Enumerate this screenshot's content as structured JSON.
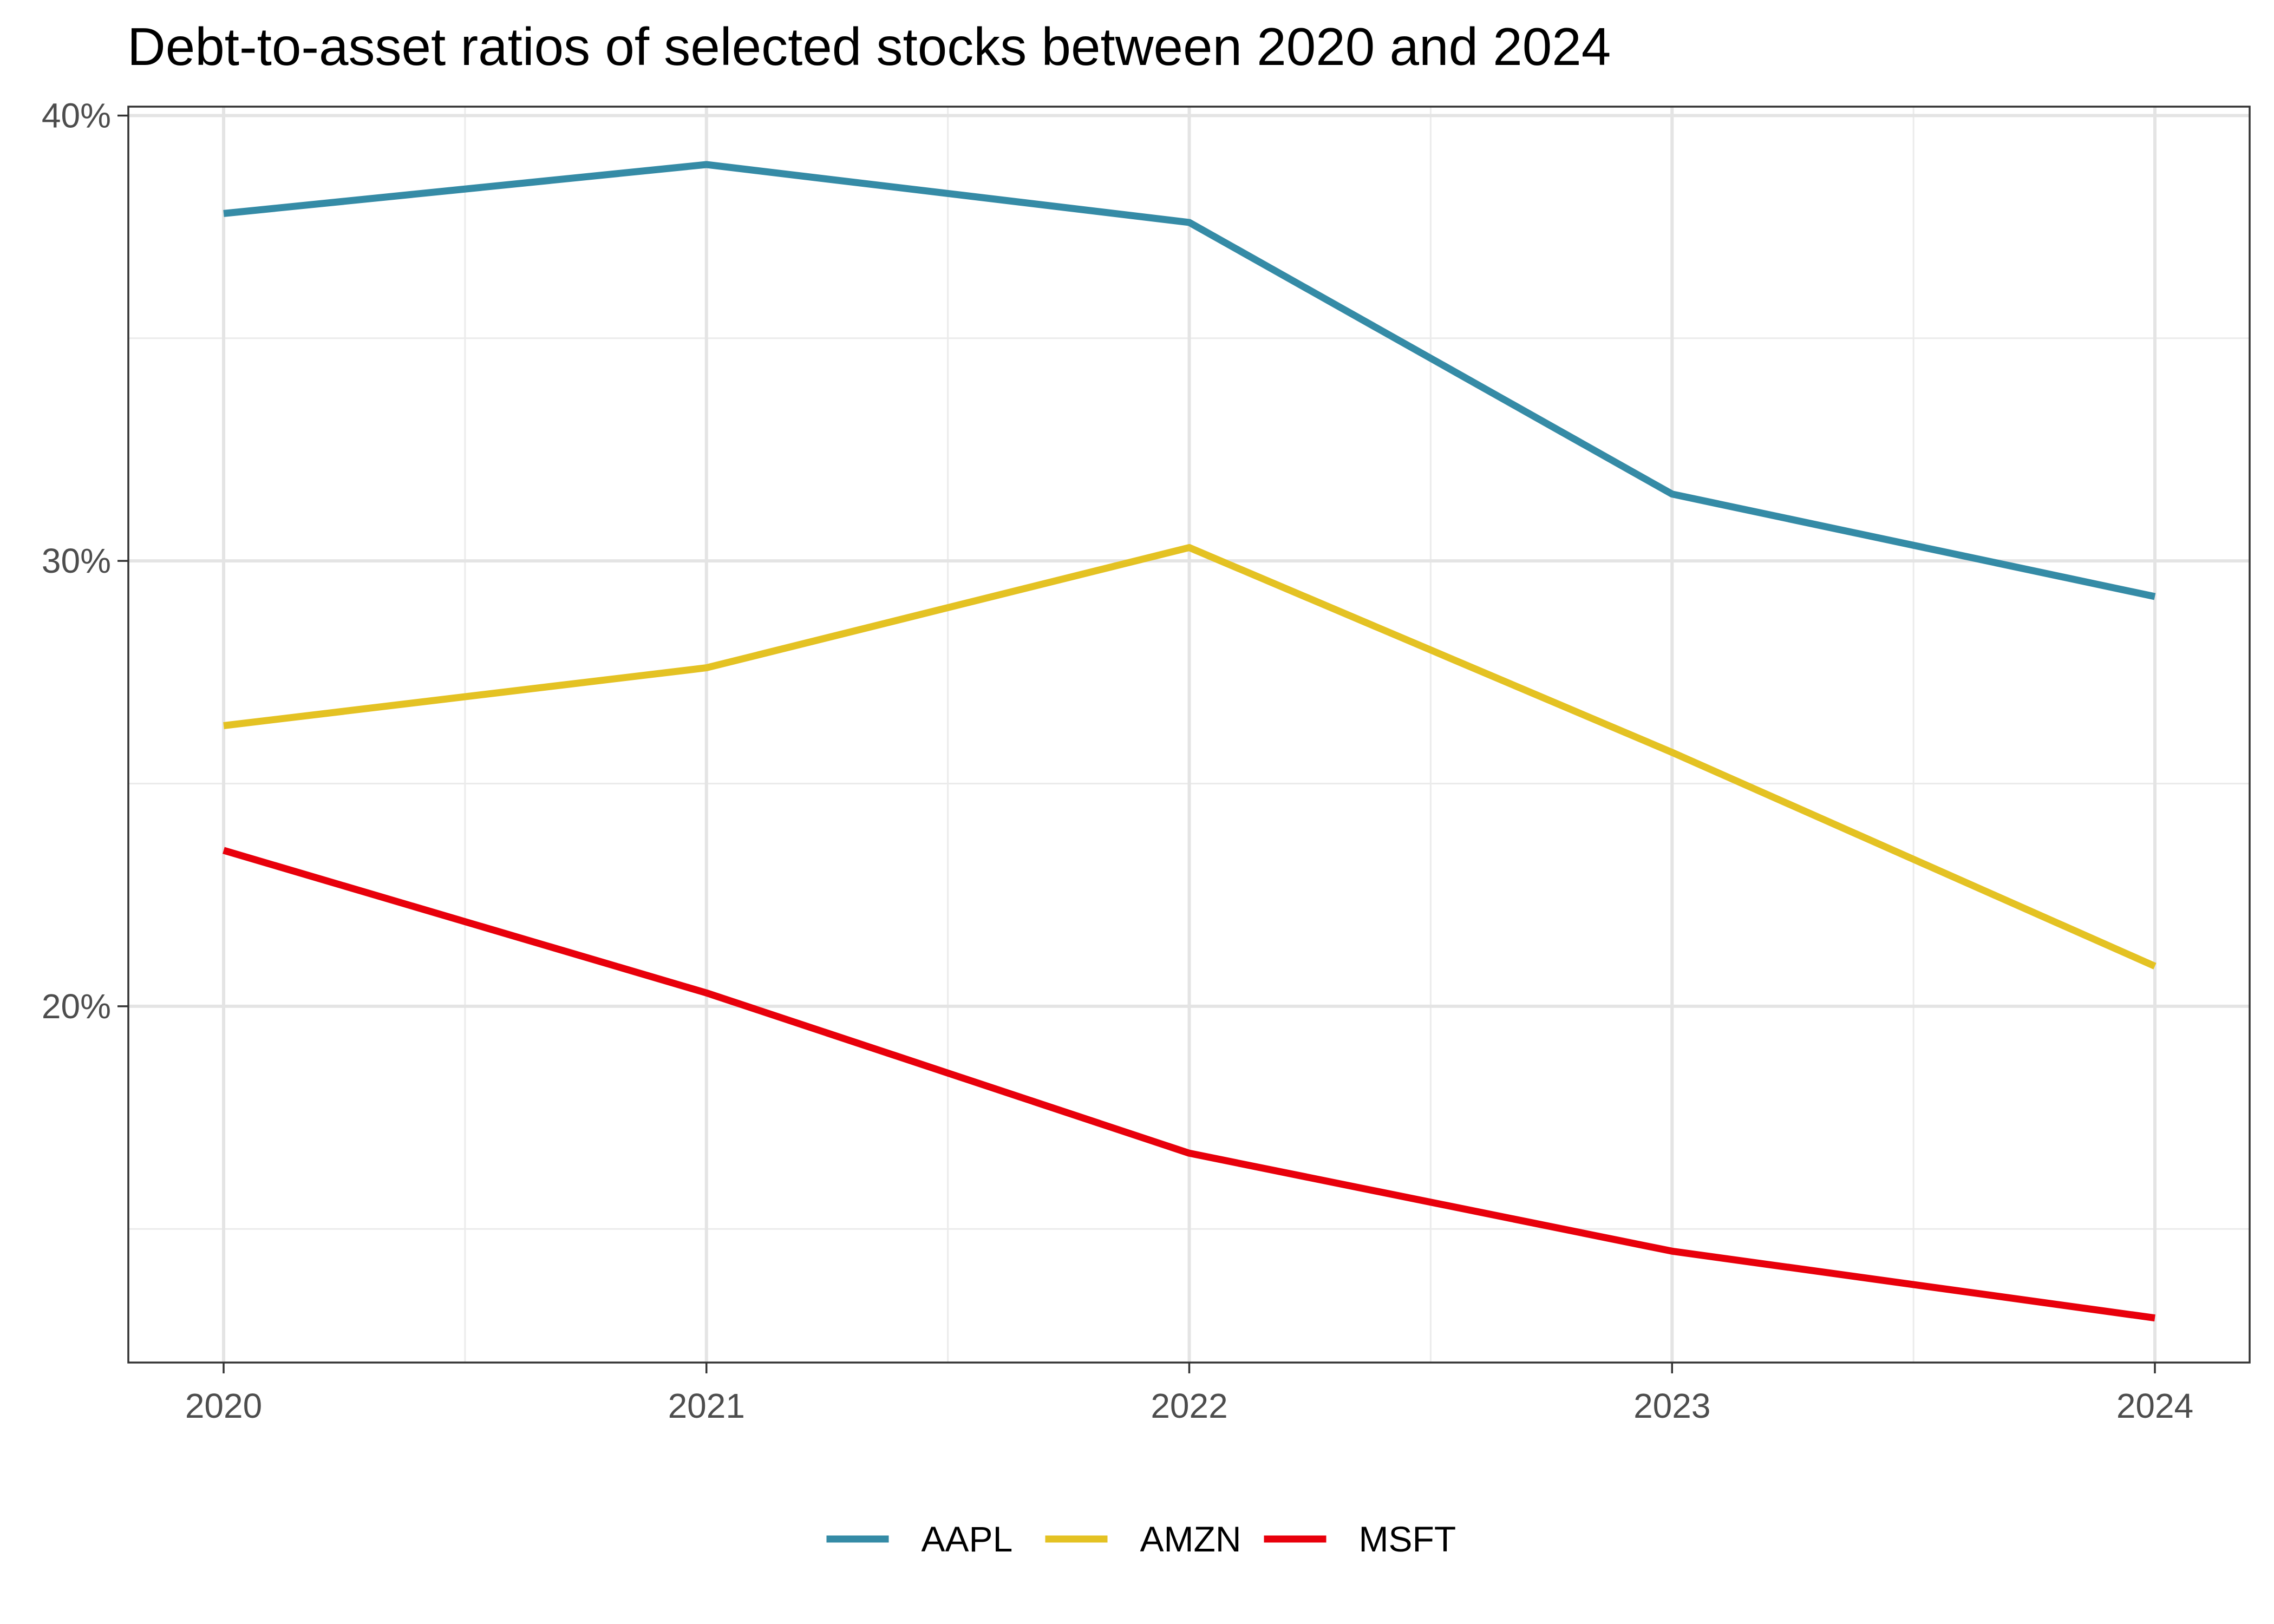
{
  "chart_data": {
    "type": "line",
    "title": "Debt-to-asset ratios of selected stocks between 2020 and 2024",
    "xlabel": "",
    "ylabel": "",
    "x": [
      "2020",
      "2021",
      "2022",
      "2023",
      "2024"
    ],
    "y_ticks": [
      20,
      30,
      40
    ],
    "y_tick_labels": [
      "20%",
      "30%",
      "40%"
    ],
    "ylim": [
      12,
      40.2
    ],
    "y_unit": "%",
    "grid": true,
    "legend_position": "bottom",
    "series": [
      {
        "name": "AAPL",
        "color": "#358ba6",
        "values": [
          37.8,
          38.9,
          37.6,
          31.5,
          29.2
        ]
      },
      {
        "name": "AMZN",
        "color": "#e4c223",
        "values": [
          26.3,
          27.6,
          30.3,
          25.7,
          20.9
        ]
      },
      {
        "name": "MSFT",
        "color": "#e8000b",
        "values": [
          23.5,
          20.3,
          16.7,
          14.5,
          13.0
        ]
      }
    ]
  }
}
